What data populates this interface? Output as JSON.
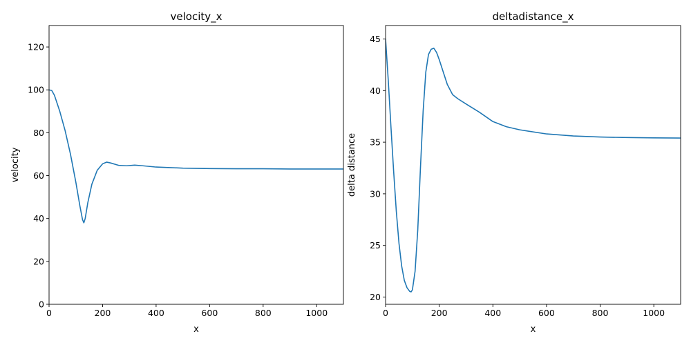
{
  "chart_data": [
    {
      "type": "line",
      "title": "velocity_x",
      "xlabel": "x",
      "ylabel": "velocity",
      "xlim": [
        0,
        1100
      ],
      "ylim": [
        0,
        130
      ],
      "xticks": [
        0,
        200,
        400,
        600,
        800,
        1000
      ],
      "yticks": [
        0,
        20,
        40,
        60,
        80,
        100,
        120
      ],
      "grid": false,
      "color": "#1f77b4",
      "series": [
        {
          "x": [
            0,
            10,
            20,
            40,
            60,
            80,
            100,
            115,
            125,
            130,
            135,
            145,
            160,
            180,
            200,
            215,
            230,
            260,
            290,
            320,
            350,
            400,
            500,
            600,
            700,
            800,
            900,
            1000,
            1100
          ],
          "y": [
            100,
            99.7,
            97.5,
            90,
            81,
            70,
            57,
            46,
            39.5,
            38,
            40,
            47.5,
            56,
            62.5,
            65.5,
            66.3,
            65.9,
            64.8,
            64.6,
            64.9,
            64.6,
            64,
            63.5,
            63.3,
            63.2,
            63.2,
            63.1,
            63.1,
            63.1
          ]
        }
      ]
    },
    {
      "type": "line",
      "title": "deltadistance_x",
      "xlabel": "x",
      "ylabel": "delta distance",
      "xlim": [
        0,
        1100
      ],
      "ylim": [
        19.3,
        46.3
      ],
      "xticks": [
        0,
        200,
        400,
        600,
        800,
        1000
      ],
      "yticks": [
        20,
        25,
        30,
        35,
        40,
        45
      ],
      "grid": false,
      "color": "#1f77b4",
      "series": [
        {
          "x": [
            0,
            10,
            20,
            30,
            40,
            50,
            60,
            70,
            80,
            90,
            95,
            100,
            110,
            120,
            130,
            140,
            150,
            160,
            170,
            180,
            190,
            200,
            215,
            230,
            250,
            270,
            300,
            350,
            400,
            450,
            500,
            600,
            700,
            800,
            900,
            1000,
            1100
          ],
          "y": [
            45,
            41,
            36.5,
            32.2,
            28.3,
            25.2,
            23,
            21.6,
            20.9,
            20.55,
            20.5,
            20.7,
            22.5,
            26.5,
            32.5,
            38,
            41.8,
            43.5,
            44,
            44.1,
            43.7,
            43,
            41.8,
            40.6,
            39.6,
            39.2,
            38.7,
            37.9,
            37,
            36.5,
            36.2,
            35.8,
            35.6,
            35.5,
            35.45,
            35.42,
            35.4
          ]
        }
      ]
    }
  ]
}
